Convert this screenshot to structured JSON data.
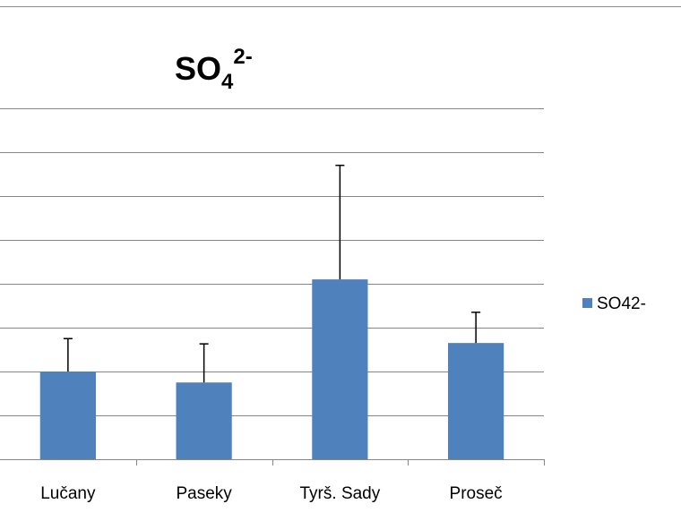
{
  "chart_data": {
    "type": "bar",
    "title": {
      "base": "SO",
      "sub": "4",
      "sup": "2-"
    },
    "categories": [
      "Lučany",
      "Paseky",
      "Tyrš. Sady",
      "Proseč"
    ],
    "series": [
      {
        "name": "SO42-",
        "color": "#4f81bd",
        "values": [
          2.0,
          1.75,
          4.1,
          2.65
        ],
        "error_plus": [
          0.75,
          0.88,
          2.6,
          0.7
        ]
      }
    ],
    "ylim": [
      0,
      8
    ],
    "y_tick_step": 1,
    "y_tick_labels_visible": false,
    "grid": true,
    "legend_position": "right",
    "xlabel": "",
    "ylabel": ""
  }
}
